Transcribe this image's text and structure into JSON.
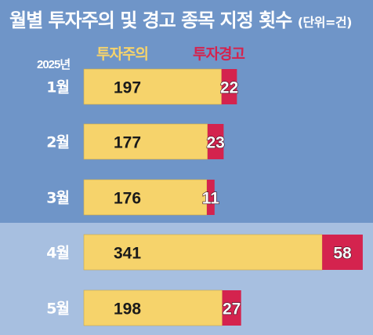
{
  "title": "월별 투자주의 및 경고 종목 지정 횟수",
  "unit": "(단위=건)",
  "year_label": "2025년",
  "colors": {
    "background": "#6f95c8",
    "highlight_band": "#a7bfe0",
    "caution": "#f6d36b",
    "warning": "#d4234e"
  },
  "chart_data": {
    "type": "bar",
    "orientation": "horizontal",
    "stacked": true,
    "title": "월별 투자주의 및 경고 종목 지정 횟수",
    "unit": "(단위=건)",
    "categories": [
      "1월",
      "2월",
      "3월",
      "4월",
      "5월"
    ],
    "series": [
      {
        "name": "투자주의",
        "values": [
          197,
          177,
          176,
          341,
          198
        ],
        "color": "#f6d36b"
      },
      {
        "name": "투자경고",
        "values": [
          22,
          23,
          11,
          58,
          27
        ],
        "color": "#d4234e"
      }
    ],
    "legend": "top",
    "grid": false
  }
}
